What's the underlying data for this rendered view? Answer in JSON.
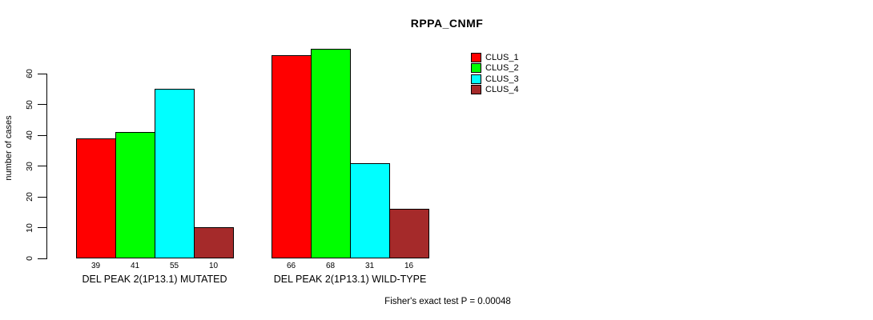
{
  "chart_data": {
    "type": "bar",
    "title": "RPPA_CNMF",
    "xlabel": "",
    "ylabel": "number of cases",
    "ylim": [
      0,
      60
    ],
    "y_ticks": [
      0,
      10,
      20,
      30,
      40,
      50,
      60
    ],
    "grid": false,
    "legend_position": "top-right",
    "categories": [
      "DEL PEAK 2(1P13.1) MUTATED",
      "DEL PEAK 2(1P13.1) WILD-TYPE"
    ],
    "series": [
      {
        "name": "CLUS_1",
        "color": "#ff0000",
        "values": [
          39,
          66
        ]
      },
      {
        "name": "CLUS_2",
        "color": "#00ff00",
        "values": [
          41,
          68
        ]
      },
      {
        "name": "CLUS_3",
        "color": "#00ffff",
        "values": [
          55,
          31
        ]
      },
      {
        "name": "CLUS_4",
        "color": "#a52a2a",
        "values": [
          10,
          16
        ]
      }
    ],
    "bar_value_labels": [
      [
        39,
        41,
        55,
        10
      ],
      [
        66,
        68,
        31,
        16
      ]
    ],
    "annotation": "Fisher's exact test P = 0.00048"
  }
}
